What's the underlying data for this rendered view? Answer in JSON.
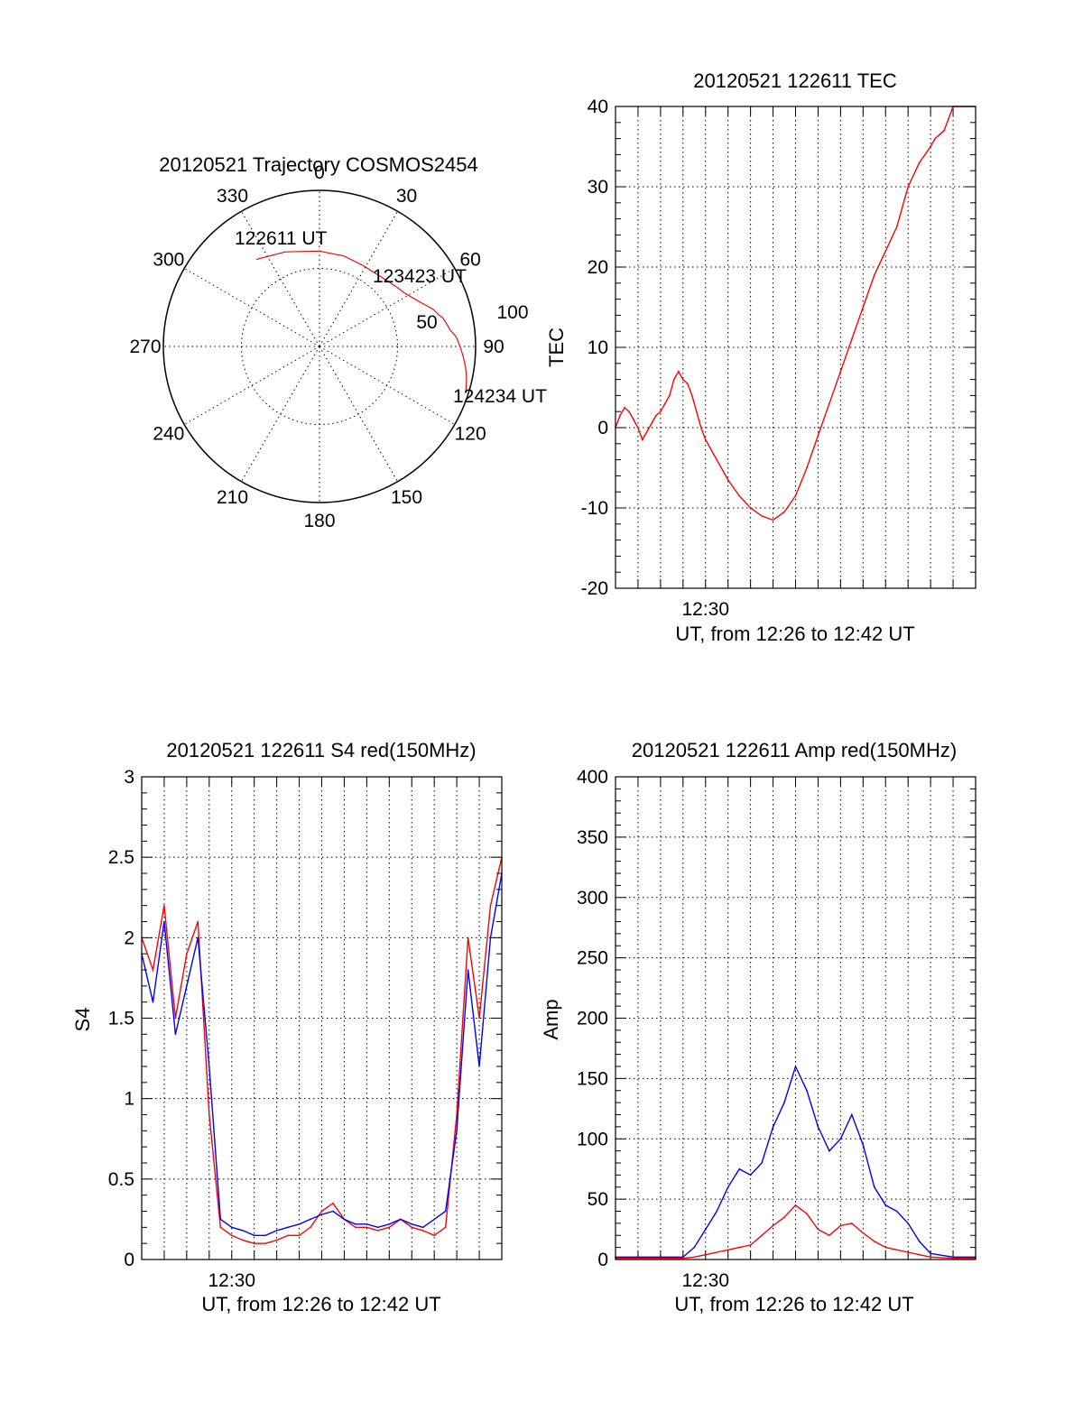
{
  "chart_data": [
    {
      "id": "polar",
      "type": "scatter",
      "subtype": "polar-sky-plot",
      "title": "20120521 Trajectory COSMOS2454",
      "azimuth_labels": [
        "0",
        "30",
        "60",
        "90",
        "120",
        "150",
        "180",
        "210",
        "240",
        "270",
        "300",
        "330"
      ],
      "ring_labels": [
        "50",
        "100"
      ],
      "elevation_range": [
        0,
        90
      ],
      "trajectory_color": "#ff0000",
      "trajectory": {
        "azimuth": [
          -36,
          -20,
          0,
          15,
          28,
          36,
          44,
          52,
          58,
          63,
          67,
          70,
          72,
          75,
          77,
          79,
          81,
          83,
          85,
          86,
          88,
          89,
          90,
          91,
          92,
          93,
          94,
          95,
          96,
          97,
          98,
          99,
          100,
          101,
          102,
          103,
          104,
          105,
          106,
          107,
          107.5
        ],
        "elevation": [
          28,
          32,
          35,
          36,
          37,
          37,
          36,
          34,
          32,
          29,
          26,
          23,
          21,
          19,
          17,
          16,
          15,
          14,
          12,
          11,
          10,
          9.5,
          9,
          8.5,
          8,
          7.5,
          7,
          6.5,
          6,
          5.5,
          5,
          4.6,
          4.2,
          3.8,
          3.4,
          3,
          2.7,
          2.4,
          2.1,
          1.8,
          1.5
        ]
      },
      "annotations": [
        "122611 UT",
        "123423 UT",
        "124234 UT"
      ]
    },
    {
      "id": "tec",
      "type": "line",
      "title": "20120521 122611 TEC",
      "xlabel": "UT, from 12:26 to 12:42 UT",
      "ylabel": "TEC",
      "xlim": [
        0,
        16
      ],
      "ylim": [
        -20,
        40
      ],
      "x_tick_labels": [
        {
          "x": 4,
          "label": "12:30"
        }
      ],
      "y_ticks": [
        -20,
        -10,
        0,
        10,
        20,
        30,
        40
      ],
      "grid": true,
      "series": [
        {
          "color": "#ff0000",
          "x": [
            0,
            0.2,
            0.4,
            0.6,
            0.8,
            1.0,
            1.2,
            1.4,
            1.6,
            1.8,
            2.0,
            2.2,
            2.4,
            2.6,
            2.8,
            3.0,
            3.2,
            3.4,
            3.6,
            3.8,
            4.0,
            4.5,
            5.0,
            5.5,
            6.0,
            6.5,
            7.0,
            7.5,
            8.0,
            8.5,
            9.0,
            9.5,
            10.0,
            10.5,
            11.0,
            11.5,
            12.0,
            12.5,
            13.0,
            13.5,
            14.0,
            14.2,
            14.4,
            14.6,
            14.8,
            15.0,
            15.2,
            15.4,
            15.6,
            15.8,
            16.0
          ],
          "y": [
            0,
            1.5,
            2.5,
            2,
            1,
            0,
            -1.5,
            -0.5,
            0.5,
            1.5,
            2,
            3,
            4,
            6,
            7,
            6,
            5.5,
            4,
            2,
            0,
            -1.5,
            -4,
            -6.5,
            -8.5,
            -10,
            -11,
            -11.5,
            -10.5,
            -8.5,
            -5,
            -1,
            3,
            7,
            11,
            15,
            19,
            22,
            25,
            30,
            33,
            35,
            36,
            36.5,
            37,
            38.5,
            40,
            40.5,
            41,
            41.2,
            40.8,
            40.5
          ]
        }
      ]
    },
    {
      "id": "s4",
      "type": "line",
      "title": "20120521 122611 S4 red(150MHz)",
      "xlabel": "UT, from 12:26 to 12:42 UT",
      "ylabel": "S4",
      "xlim": [
        0,
        16
      ],
      "ylim": [
        0,
        3
      ],
      "x_tick_labels": [
        {
          "x": 4,
          "label": "12:30"
        }
      ],
      "y_ticks": [
        0,
        0.5,
        1,
        1.5,
        2,
        2.5,
        3
      ],
      "y_tick_labels": [
        "0",
        "0.5",
        "1",
        "1.5",
        "2",
        "2.5",
        "3"
      ],
      "grid": true,
      "series": [
        {
          "color": "#ff0000",
          "x": [
            0,
            0.5,
            1.0,
            1.5,
            2.0,
            2.5,
            3.0,
            3.5,
            4.0,
            4.5,
            5.0,
            5.5,
            6.0,
            6.5,
            7.0,
            7.5,
            8.0,
            8.5,
            9.0,
            9.5,
            10.0,
            10.5,
            11.0,
            11.5,
            12.0,
            12.5,
            13.0,
            13.5,
            14.0,
            14.5,
            15.0,
            15.5,
            16.0
          ],
          "y": [
            2.0,
            1.8,
            2.2,
            1.5,
            1.9,
            2.1,
            0.9,
            0.2,
            0.15,
            0.12,
            0.1,
            0.1,
            0.12,
            0.15,
            0.15,
            0.2,
            0.3,
            0.35,
            0.25,
            0.2,
            0.2,
            0.18,
            0.2,
            0.25,
            0.2,
            0.18,
            0.15,
            0.2,
            0.9,
            2.0,
            1.5,
            2.2,
            2.5
          ]
        },
        {
          "color": "#0000ff",
          "x": [
            0,
            0.5,
            1.0,
            1.5,
            2.0,
            2.5,
            3.0,
            3.5,
            4.0,
            4.5,
            5.0,
            5.5,
            6.0,
            6.5,
            7.0,
            7.5,
            8.0,
            8.5,
            9.0,
            9.5,
            10.0,
            10.5,
            11.0,
            11.5,
            12.0,
            12.5,
            13.0,
            13.5,
            14.0,
            14.5,
            15.0,
            15.5,
            16.0
          ],
          "y": [
            1.9,
            1.6,
            2.1,
            1.4,
            1.7,
            2.0,
            1.2,
            0.25,
            0.2,
            0.18,
            0.15,
            0.15,
            0.18,
            0.2,
            0.22,
            0.25,
            0.28,
            0.3,
            0.25,
            0.22,
            0.22,
            0.2,
            0.22,
            0.25,
            0.22,
            0.2,
            0.25,
            0.3,
            0.8,
            1.8,
            1.2,
            2.0,
            2.4
          ]
        }
      ]
    },
    {
      "id": "amp",
      "type": "line",
      "title": "20120521 122611 Amp red(150MHz)",
      "xlabel": "UT, from 12:26 to 12:42 UT",
      "ylabel": "Amp",
      "xlim": [
        0,
        16
      ],
      "ylim": [
        0,
        400
      ],
      "x_tick_labels": [
        {
          "x": 4,
          "label": "12:30"
        }
      ],
      "y_ticks": [
        0,
        50,
        100,
        150,
        200,
        250,
        300,
        350,
        400
      ],
      "grid": true,
      "series": [
        {
          "color": "#ff0000",
          "x": [
            0,
            1,
            2,
            3,
            3.5,
            4,
            4.5,
            5,
            5.5,
            6,
            6.5,
            7,
            7.5,
            8,
            8.5,
            9,
            9.5,
            10,
            10.5,
            11,
            11.5,
            12,
            12.5,
            13,
            13.5,
            14,
            15,
            16
          ],
          "y": [
            1,
            1,
            1,
            1,
            2,
            4,
            6,
            8,
            10,
            12,
            20,
            28,
            35,
            45,
            38,
            25,
            20,
            28,
            30,
            22,
            15,
            10,
            8,
            6,
            4,
            2,
            1,
            1
          ]
        },
        {
          "color": "#0000ff",
          "x": [
            0,
            1,
            2,
            3,
            3.5,
            4,
            4.5,
            5,
            5.5,
            6,
            6.5,
            7,
            7.5,
            8,
            8.5,
            9,
            9.5,
            10,
            10.5,
            11,
            11.5,
            12,
            12.5,
            13,
            13.5,
            14,
            15,
            16
          ],
          "y": [
            2,
            2,
            2,
            2,
            10,
            25,
            40,
            60,
            75,
            70,
            80,
            110,
            130,
            160,
            140,
            110,
            90,
            100,
            120,
            95,
            60,
            45,
            40,
            30,
            15,
            5,
            2,
            2
          ]
        }
      ]
    }
  ]
}
